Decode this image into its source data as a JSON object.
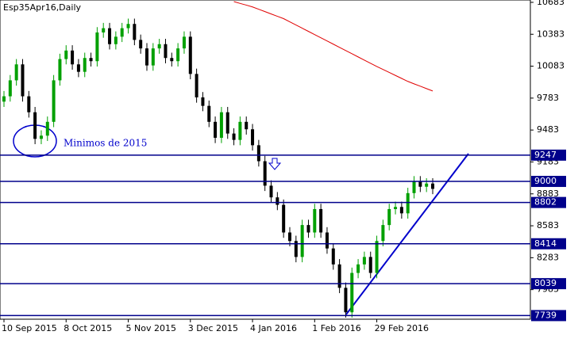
{
  "chart_data": {
    "type": "candlestick",
    "title": "Esp35Apr16,Daily",
    "annotation": "Minimos de 2015",
    "categories": [
      "10 Sep 2015",
      null,
      null,
      null,
      null,
      null,
      null,
      null,
      null,
      null,
      "8 Oct 2015",
      null,
      null,
      null,
      null,
      null,
      null,
      null,
      null,
      null,
      "5 Nov 2015",
      null,
      null,
      null,
      null,
      null,
      null,
      null,
      null,
      null,
      "3 Dec 2015",
      null,
      null,
      null,
      null,
      null,
      null,
      null,
      null,
      null,
      "4 Jan 2016",
      null,
      null,
      null,
      null,
      null,
      null,
      null,
      null,
      null,
      "1 Feb 2016",
      null,
      null,
      null,
      null,
      null,
      null,
      null,
      null,
      null,
      "29 Feb 2016",
      null,
      null,
      null,
      null,
      null,
      null,
      null,
      null,
      null
    ],
    "open": [
      9750,
      9800,
      9950,
      10100,
      9800,
      9650,
      9400,
      9430,
      9560,
      9950,
      10150,
      10230,
      10100,
      10030,
      10160,
      10130,
      10400,
      10440,
      10290,
      10360,
      10440,
      10480,
      10330,
      10250,
      10090,
      10250,
      10290,
      10160,
      10130,
      10250,
      10360,
      10010,
      9790,
      9710,
      9560,
      9410,
      9650,
      9450,
      9390,
      9560,
      9490,
      9340,
      9190,
      8960,
      8850,
      8780,
      8520,
      8440,
      8290,
      8590,
      8520,
      8740,
      8520,
      8370,
      8220,
      8000,
      7770,
      8140,
      8220,
      8290,
      8140,
      8440,
      8590,
      8740,
      8760,
      8700,
      8890,
      9000,
      8950,
      8980
    ],
    "high": [
      9850,
      10000,
      10150,
      10150,
      9850,
      9700,
      9480,
      9610,
      10000,
      10200,
      10280,
      10280,
      10150,
      10210,
      10210,
      10450,
      10490,
      10490,
      10410,
      10490,
      10530,
      10530,
      10380,
      10300,
      10300,
      10340,
      10340,
      10210,
      10300,
      10410,
      10410,
      10060,
      9840,
      9760,
      9610,
      9700,
      9700,
      9500,
      9610,
      9610,
      9540,
      9390,
      9240,
      9010,
      8900,
      8830,
      8570,
      8490,
      8640,
      8640,
      8790,
      8790,
      8570,
      8420,
      8270,
      8050,
      8190,
      8270,
      8340,
      8340,
      8490,
      8640,
      8790,
      8810,
      8810,
      8940,
      9050,
      9050,
      9030,
      9030
    ],
    "low": [
      9700,
      9750,
      9900,
      9750,
      9600,
      9350,
      9350,
      9380,
      9510,
      9900,
      10100,
      10050,
      9980,
      9980,
      10080,
      10080,
      10350,
      10240,
      10240,
      10310,
      10390,
      10280,
      10200,
      10040,
      10040,
      10200,
      10110,
      10080,
      10080,
      10200,
      9960,
      9740,
      9660,
      9510,
      9360,
      9360,
      9400,
      9340,
      9340,
      9440,
      9290,
      9140,
      8910,
      8800,
      8730,
      8470,
      8390,
      8240,
      8240,
      8470,
      8470,
      8470,
      8320,
      8170,
      7950,
      7720,
      7720,
      8090,
      8170,
      8090,
      8090,
      8390,
      8540,
      8690,
      8650,
      8650,
      8840,
      8900,
      8900,
      8880
    ],
    "close": [
      9800,
      9950,
      10100,
      9800,
      9650,
      9400,
      9430,
      9560,
      9950,
      10150,
      10230,
      10100,
      10030,
      10160,
      10130,
      10400,
      10440,
      10290,
      10360,
      10440,
      10480,
      10330,
      10250,
      10090,
      10250,
      10290,
      10160,
      10130,
      10250,
      10360,
      10010,
      9790,
      9710,
      9560,
      9410,
      9650,
      9450,
      9390,
      9560,
      9490,
      9340,
      9190,
      8960,
      8850,
      8780,
      8520,
      8440,
      8290,
      8590,
      8520,
      8740,
      8520,
      8370,
      8220,
      8000,
      7770,
      8140,
      8220,
      8290,
      8140,
      8440,
      8590,
      8740,
      8760,
      8700,
      8890,
      9000,
      8950,
      8980,
      8930
    ],
    "ma": [
      null,
      null,
      null,
      null,
      null,
      null,
      null,
      null,
      null,
      null,
      null,
      null,
      null,
      null,
      null,
      null,
      null,
      null,
      null,
      null,
      null,
      null,
      null,
      null,
      null,
      null,
      null,
      null,
      null,
      null,
      null,
      null,
      null,
      null,
      null,
      null,
      null,
      10690,
      10673,
      10657,
      10640,
      10618,
      10596,
      10574,
      10552,
      10530,
      10500,
      10470,
      10440,
      10410,
      10380,
      10350,
      10320,
      10290,
      10260,
      10230,
      10200,
      10170,
      10140,
      10110,
      10080,
      10052,
      10024,
      9996,
      9968,
      9940,
      9917,
      9895,
      9872,
      9850
    ],
    "ma_color": "#e00000",
    "up_color": "#00a000",
    "down_color": "#000000",
    "levels": [
      9247,
      9000,
      8802,
      8414,
      8039,
      7739
    ],
    "level_color": "#00008b",
    "ylim": [
      7705,
      10705
    ],
    "yticks": [
      10683,
      10383,
      10083,
      9783,
      9483,
      9183,
      8883,
      8583,
      8283,
      7983
    ]
  }
}
